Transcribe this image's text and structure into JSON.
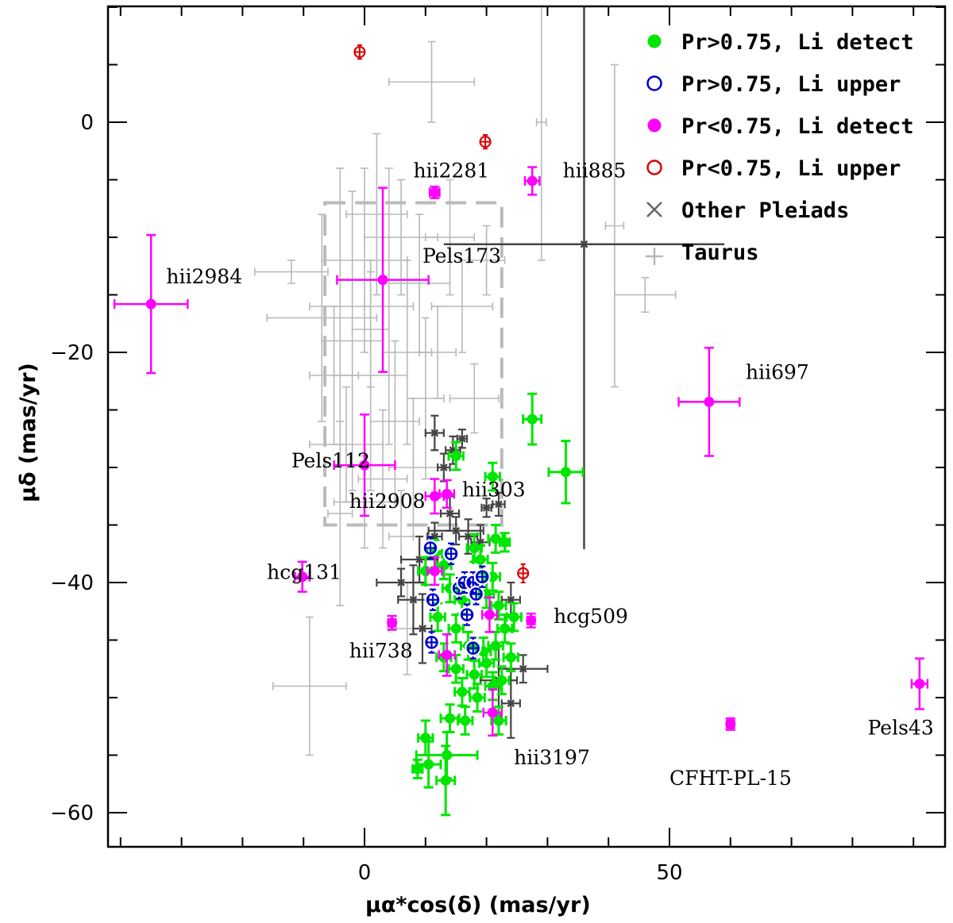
{
  "chart_data": {
    "type": "scatter",
    "xlabel": "μα*cos(δ)    (mas/yr)",
    "ylabel": "μδ (mas/yr)",
    "xlim": [
      -41,
      96
    ],
    "ylim": [
      -63,
      10
    ],
    "xticks": [
      0,
      50
    ],
    "yticks": [
      0,
      -20,
      -40,
      -60
    ],
    "legend_position": "top-right",
    "legend": [
      {
        "label": "Pr>0.75, Li detect",
        "marker": "filled-circle",
        "color": "#00e600"
      },
      {
        "label": "Pr>0.75, Li upper",
        "marker": "open-circle",
        "color": "#0000cc"
      },
      {
        "label": "Pr<0.75, Li detect",
        "marker": "filled-circle",
        "color": "#ff00ff"
      },
      {
        "label": "Pr<0.75, Li upper",
        "marker": "open-circle",
        "color": "#dd0000"
      },
      {
        "label": "Other Pleiads",
        "marker": "x",
        "color": "#666666"
      },
      {
        "label": "Taurus",
        "marker": "plus",
        "color": "#b8b8b8"
      }
    ],
    "dashed_box": {
      "x": [
        -6.5,
        22.5
      ],
      "y": [
        -35,
        -7
      ]
    },
    "series": [
      {
        "name": "Pr>0.75, Li detect",
        "color": "#00e600",
        "points": [
          {
            "x": 27.5,
            "y": -25.8,
            "xerr": 1.5,
            "yerr": 2.2
          },
          {
            "x": 33,
            "y": -30.4,
            "xerr": 2.8,
            "yerr": 2.7
          },
          {
            "x": 15,
            "y": -29,
            "xerr": 1.2,
            "yerr": 1.2
          },
          {
            "x": 21,
            "y": -30.8,
            "xerr": 1.2,
            "yerr": 1.2
          },
          {
            "x": 21.5,
            "y": -36.2,
            "xerr": 1.2,
            "yerr": 1.2
          },
          {
            "x": 23,
            "y": -36.5,
            "xerr": 0.8,
            "yerr": 0.8
          },
          {
            "x": 10,
            "y": -39,
            "xerr": 1.2,
            "yerr": 1.2
          },
          {
            "x": 13,
            "y": -38.5,
            "xerr": 1.2,
            "yerr": 1.2
          },
          {
            "x": 14,
            "y": -40.5,
            "xerr": 1.2,
            "yerr": 1.2
          },
          {
            "x": 16,
            "y": -41.5,
            "xerr": 1.2,
            "yerr": 1.2
          },
          {
            "x": 19,
            "y": -38,
            "xerr": 1.2,
            "yerr": 1.2
          },
          {
            "x": 20,
            "y": -41,
            "xerr": 1.2,
            "yerr": 1.2
          },
          {
            "x": 21,
            "y": -39.5,
            "xerr": 1.2,
            "yerr": 1.2
          },
          {
            "x": 22,
            "y": -42,
            "xerr": 1.2,
            "yerr": 1.2
          },
          {
            "x": 12,
            "y": -43,
            "xerr": 1.2,
            "yerr": 1.2
          },
          {
            "x": 15,
            "y": -44,
            "xerr": 1.2,
            "yerr": 1.2
          },
          {
            "x": 17,
            "y": -45.5,
            "xerr": 1.2,
            "yerr": 1.2
          },
          {
            "x": 19.5,
            "y": -46,
            "xerr": 1.2,
            "yerr": 1.2
          },
          {
            "x": 21.5,
            "y": -45.5,
            "xerr": 1.2,
            "yerr": 1.2
          },
          {
            "x": 23,
            "y": -44,
            "xerr": 1.2,
            "yerr": 1.2
          },
          {
            "x": 24,
            "y": -46.5,
            "xerr": 1.2,
            "yerr": 1.2
          },
          {
            "x": 13,
            "y": -46.5,
            "xerr": 1.2,
            "yerr": 1.2
          },
          {
            "x": 15,
            "y": -47.5,
            "xerr": 1.2,
            "yerr": 1.2
          },
          {
            "x": 18,
            "y": -48,
            "xerr": 1.2,
            "yerr": 1.2
          },
          {
            "x": 20,
            "y": -47,
            "xerr": 1.2,
            "yerr": 1.2
          },
          {
            "x": 22.5,
            "y": -48.5,
            "xerr": 1.2,
            "yerr": 1.2
          },
          {
            "x": 16,
            "y": -49.5,
            "xerr": 1.2,
            "yerr": 1.2
          },
          {
            "x": 18.5,
            "y": -50,
            "xerr": 1.2,
            "yerr": 1.2
          },
          {
            "x": 21,
            "y": -49,
            "xerr": 1.2,
            "yerr": 1.2
          },
          {
            "x": 14,
            "y": -51.8,
            "xerr": 1.5,
            "yerr": 1.2
          },
          {
            "x": 16.5,
            "y": -52,
            "xerr": 1.2,
            "yerr": 1.2
          },
          {
            "x": 22,
            "y": -52,
            "xerr": 1.2,
            "yerr": 1.2
          },
          {
            "x": 10,
            "y": -53.5,
            "xerr": 1.2,
            "yerr": 1.5
          },
          {
            "x": 13.5,
            "y": -55,
            "xerr": 5,
            "yerr": 2
          },
          {
            "x": 10.5,
            "y": -55.8,
            "xerr": 2,
            "yerr": 2
          },
          {
            "x": 8.7,
            "y": -56.2,
            "xerr": 0.8,
            "yerr": 0.8
          },
          {
            "x": 13.3,
            "y": -57.2,
            "xerr": 1.5,
            "yerr": 3
          },
          {
            "x": 18,
            "y": -37,
            "xerr": 1.2,
            "yerr": 1.2
          },
          {
            "x": 11.5,
            "y": -37.5,
            "xerr": 1.2,
            "yerr": 1.2
          },
          {
            "x": 24.5,
            "y": -43,
            "xerr": 1.2,
            "yerr": 1.2
          }
        ]
      },
      {
        "name": "Pr>0.75, Li upper",
        "color": "#0000cc",
        "points": [
          {
            "x": 10.8,
            "y": -37,
            "xerr": 0.8,
            "yerr": 0.9
          },
          {
            "x": 14.2,
            "y": -37.5,
            "xerr": 0.8,
            "yerr": 0.9
          },
          {
            "x": 11.2,
            "y": -41.5,
            "xerr": 0.8,
            "yerr": 0.9
          },
          {
            "x": 15.5,
            "y": -40.5,
            "xerr": 0.8,
            "yerr": 0.9
          },
          {
            "x": 16.4,
            "y": -40,
            "xerr": 0.8,
            "yerr": 0.9
          },
          {
            "x": 17.8,
            "y": -40,
            "xerr": 0.8,
            "yerr": 0.9
          },
          {
            "x": 18.3,
            "y": -41,
            "xerr": 0.8,
            "yerr": 0.9
          },
          {
            "x": 19.3,
            "y": -39.5,
            "xerr": 0.8,
            "yerr": 0.9
          },
          {
            "x": 16.8,
            "y": -42.8,
            "xerr": 0.8,
            "yerr": 0.9
          },
          {
            "x": 11,
            "y": -45.2,
            "xerr": 0.8,
            "yerr": 0.9
          },
          {
            "x": 17.8,
            "y": -45.7,
            "xerr": 0.8,
            "yerr": 0.9
          }
        ]
      },
      {
        "name": "Pr<0.75, Li detect",
        "color": "#ff00ff",
        "points": [
          {
            "x": -35,
            "y": -15.8,
            "xerr": 6,
            "yerr": 6
          },
          {
            "x": 3,
            "y": -13.7,
            "xerr": 7.5,
            "yerr": 8
          },
          {
            "x": 11.5,
            "y": -6.1,
            "xerr": 0.8,
            "yerr": 0.5
          },
          {
            "x": 27.5,
            "y": -5.1,
            "xerr": 1.2,
            "yerr": 1.2
          },
          {
            "x": 56.5,
            "y": -24.3,
            "xerr": 5,
            "yerr": 4.7
          },
          {
            "x": 0,
            "y": -29.8,
            "xerr": 5,
            "yerr": 4.4
          },
          {
            "x": 11.5,
            "y": -32.5,
            "xerr": 1.5,
            "yerr": 1.5
          },
          {
            "x": 13.5,
            "y": -32.3,
            "xerr": 1.2,
            "yerr": 1.2
          },
          {
            "x": -10.2,
            "y": -39.5,
            "xerr": 1.2,
            "yerr": 1.3
          },
          {
            "x": 4.5,
            "y": -43.5,
            "xerr": 0.6,
            "yerr": 0.6
          },
          {
            "x": 11.5,
            "y": -39,
            "xerr": 1.2,
            "yerr": 1.2
          },
          {
            "x": 27.3,
            "y": -43.3,
            "xerr": 0.6,
            "yerr": 0.6
          },
          {
            "x": 20.5,
            "y": -42.8,
            "xerr": 1.2,
            "yerr": 1.5
          },
          {
            "x": 13.5,
            "y": -46.3,
            "xerr": 1.3,
            "yerr": 1.8
          },
          {
            "x": 21,
            "y": -51.3,
            "xerr": 1.5,
            "yerr": 2
          },
          {
            "x": 60,
            "y": -52.3,
            "xerr": 0.6,
            "yerr": 0.5
          },
          {
            "x": 91,
            "y": -48.8,
            "xerr": 1.3,
            "yerr": 2.2
          }
        ]
      },
      {
        "name": "Pr<0.75, Li upper",
        "color": "#dd0000",
        "points": [
          {
            "x": -0.8,
            "y": 6.1,
            "xerr": 0.8,
            "yerr": 0.6
          },
          {
            "x": 19.8,
            "y": -1.7,
            "xerr": 0.8,
            "yerr": 0.6
          },
          {
            "x": 26,
            "y": -39.2,
            "xerr": 0.8,
            "yerr": 0.8
          }
        ]
      },
      {
        "name": "Other Pleiads",
        "color": "#444444",
        "points": [
          {
            "x": 36,
            "y": -10.6,
            "xerr": 23,
            "yerr": 26.5
          },
          {
            "x": 11.5,
            "y": -27,
            "xerr": 1.5,
            "yerr": 1.5
          },
          {
            "x": 14.5,
            "y": -28.5,
            "xerr": 1.2,
            "yerr": 1.2
          },
          {
            "x": 16,
            "y": -27.5,
            "xerr": 0.8,
            "yerr": 0.8
          },
          {
            "x": 20,
            "y": -33.5,
            "xerr": 0.8,
            "yerr": 0.8
          },
          {
            "x": 22,
            "y": -33.2,
            "xerr": 1,
            "yerr": 1
          },
          {
            "x": 13,
            "y": -30,
            "xerr": 1,
            "yerr": 1.2
          },
          {
            "x": 14,
            "y": -34,
            "xerr": 1.5,
            "yerr": 1.5
          },
          {
            "x": 15,
            "y": -35.5,
            "xerr": 4.5,
            "yerr": 1.2
          },
          {
            "x": 17,
            "y": -36,
            "xerr": 1.5,
            "yerr": 1.5
          },
          {
            "x": 9,
            "y": -38,
            "xerr": 3,
            "yerr": 2
          },
          {
            "x": 6,
            "y": -40,
            "xerr": 4,
            "yerr": 1.2
          },
          {
            "x": 8,
            "y": -41.5,
            "xerr": 2.5,
            "yerr": 3
          },
          {
            "x": 9.5,
            "y": -44,
            "xerr": 1.5,
            "yerr": 3
          },
          {
            "x": 22,
            "y": -48.5,
            "xerr": 3,
            "yerr": 3
          },
          {
            "x": 26,
            "y": -47.5,
            "xerr": 4,
            "yerr": 1.2
          },
          {
            "x": 24,
            "y": -50.5,
            "xerr": 1.5,
            "yerr": 3
          },
          {
            "x": 24,
            "y": -41.5,
            "xerr": 1.5,
            "yerr": 1.5
          },
          {
            "x": 19,
            "y": -36.5,
            "xerr": 1.5,
            "yerr": 1.5
          },
          {
            "x": 11.5,
            "y": -36,
            "xerr": 1.2,
            "yerr": 1.2
          }
        ]
      },
      {
        "name": "Taurus",
        "color": "#b8b8b8",
        "points": [
          {
            "x": 11,
            "y": 3.5,
            "xerr": 7,
            "yerr": 3.5
          },
          {
            "x": 29,
            "y": 0,
            "xerr": 0.8,
            "yerr": 12
          },
          {
            "x": 46,
            "y": -15,
            "xerr": 5,
            "yerr": 1.5
          },
          {
            "x": 41,
            "y": -9,
            "xerr": 1.5,
            "yerr": 14
          },
          {
            "x": -9,
            "y": -49,
            "xerr": 6,
            "yerr": 6
          },
          {
            "x": -4,
            "y": -34,
            "xerr": 2,
            "yerr": 8
          },
          {
            "x": -12,
            "y": -13,
            "xerr": 6,
            "yerr": 1
          },
          {
            "x": -7,
            "y": -17,
            "xerr": 9,
            "yerr": 9
          },
          {
            "x": -4,
            "y": -16,
            "xerr": 5,
            "yerr": 12
          },
          {
            "x": -2,
            "y": -19,
            "xerr": 5,
            "yerr": 13
          },
          {
            "x": 0,
            "y": -12,
            "xerr": 7,
            "yerr": 8
          },
          {
            "x": 1,
            "y": -22,
            "xerr": 6,
            "yerr": 10
          },
          {
            "x": 2,
            "y": -8,
            "xerr": 5,
            "yerr": 7
          },
          {
            "x": 4,
            "y": -16,
            "xerr": 4,
            "yerr": 12
          },
          {
            "x": 5,
            "y": -26,
            "xerr": 4,
            "yerr": 7
          },
          {
            "x": 6,
            "y": -10,
            "xerr": 6,
            "yerr": 5
          },
          {
            "x": 7,
            "y": -20,
            "xerr": 4,
            "yerr": 8
          },
          {
            "x": 8,
            "y": -30,
            "xerr": 4,
            "yerr": 6
          },
          {
            "x": 9,
            "y": -14,
            "xerr": 5,
            "yerr": 6
          },
          {
            "x": 10,
            "y": -24,
            "xerr": 3,
            "yerr": 7
          },
          {
            "x": -3,
            "y": -28,
            "xerr": 6,
            "yerr": 5
          },
          {
            "x": 0,
            "y": -33,
            "xerr": 5,
            "yerr": 4
          },
          {
            "x": 3,
            "y": -31,
            "xerr": 4,
            "yerr": 6
          },
          {
            "x": 1,
            "y": -18,
            "xerr": 3,
            "yerr": 5
          },
          {
            "x": -5,
            "y": -22,
            "xerr": 4,
            "yerr": 6
          },
          {
            "x": 6,
            "y": -36,
            "xerr": 2,
            "yerr": 4
          },
          {
            "x": 12,
            "y": -20,
            "xerr": 3,
            "yerr": 4
          },
          {
            "x": 14,
            "y": -10,
            "xerr": 4,
            "yerr": 5
          },
          {
            "x": 16,
            "y": -16,
            "xerr": 5,
            "yerr": 4
          },
          {
            "x": 18,
            "y": -24,
            "xerr": 4,
            "yerr": 3
          },
          {
            "x": 7,
            "y": -44,
            "xerr": 3,
            "yerr": 4
          },
          {
            "x": 20,
            "y": -12,
            "xerr": 3,
            "yerr": 3
          }
        ]
      }
    ],
    "annotations": [
      {
        "text": "hii2281",
        "x": 8,
        "y": -4.8
      },
      {
        "text": "hii885",
        "x": 32.5,
        "y": -4.8
      },
      {
        "text": "Pels173",
        "x": 9.5,
        "y": -12.2
      },
      {
        "text": "hii2984",
        "x": -32.5,
        "y": -14
      },
      {
        "text": "hii697",
        "x": 62.5,
        "y": -22.3
      },
      {
        "text": "Pels112",
        "x": -12,
        "y": -30
      },
      {
        "text": "hii2908",
        "x": -2.5,
        "y": -33.5
      },
      {
        "text": "hii303",
        "x": 16,
        "y": -32.5
      },
      {
        "text": "hcg131",
        "x": -16,
        "y": -39.7
      },
      {
        "text": "hcg509",
        "x": 31,
        "y": -43.5
      },
      {
        "text": "hii738",
        "x": -2.5,
        "y": -46.5
      },
      {
        "text": "hii3197",
        "x": 24.5,
        "y": -55.8
      },
      {
        "text": "CFHT-PL-15",
        "x": 50,
        "y": -57.6
      },
      {
        "text": "Pels43",
        "x": 82.5,
        "y": -53.2
      }
    ]
  }
}
